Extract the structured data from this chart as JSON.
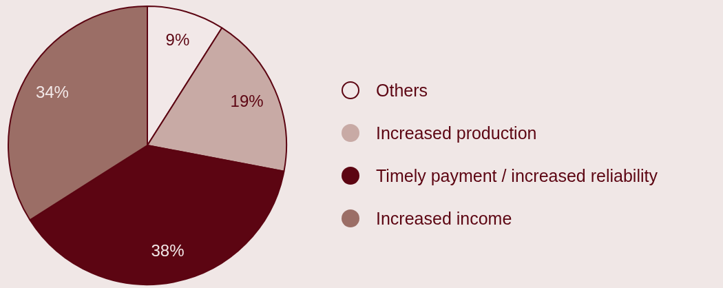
{
  "chart_data": {
    "type": "pie",
    "categories": [
      "Others",
      "Increased production",
      "Timely payment / increased reliability",
      "Increased income"
    ],
    "values": [
      9,
      19,
      38,
      34
    ],
    "colors": [
      "#f2e8e8",
      "#c8aaa5",
      "#5c0512",
      "#9b6e66"
    ],
    "value_labels": [
      "9%",
      "19%",
      "38%",
      "34%"
    ],
    "legend": "right"
  }
}
